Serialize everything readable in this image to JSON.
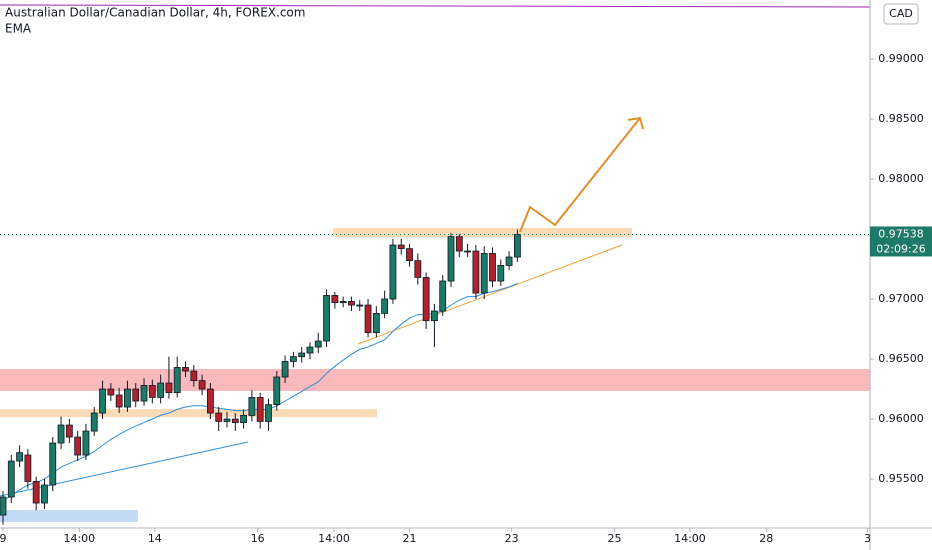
{
  "chart_data": {
    "type": "candlestick",
    "title": "Australian Dollar/Canadian Dollar, 4h, FOREX.com",
    "currency": "CAD",
    "candles": {
      "open": [
        0.952,
        0.9535,
        0.9565,
        0.957,
        0.9548,
        0.953,
        0.9545,
        0.958,
        0.9595,
        0.9585,
        0.957,
        0.959,
        0.9605,
        0.9625,
        0.962,
        0.961,
        0.9625,
        0.9615,
        0.9628,
        0.9618,
        0.963,
        0.9622,
        0.9643,
        0.964,
        0.9632,
        0.9625,
        0.9605,
        0.9598,
        0.96,
        0.9597,
        0.9603,
        0.9618,
        0.9598,
        0.9612,
        0.9635,
        0.9648,
        0.9652,
        0.9655,
        0.966,
        0.9665,
        0.9703,
        0.9697,
        0.9698,
        0.9695,
        0.9695,
        0.9672,
        0.9688,
        0.97,
        0.9745,
        0.9742,
        0.9732,
        0.9718,
        0.9682,
        0.969,
        0.9715,
        0.9752,
        0.974,
        0.974,
        0.9705,
        0.9738,
        0.9715,
        0.9728,
        0.9735
      ],
      "high": [
        0.954,
        0.957,
        0.9578,
        0.9575,
        0.9552,
        0.955,
        0.9585,
        0.9602,
        0.96,
        0.959,
        0.9596,
        0.961,
        0.9632,
        0.963,
        0.9626,
        0.9632,
        0.963,
        0.9634,
        0.9633,
        0.9637,
        0.9652,
        0.9652,
        0.9648,
        0.9645,
        0.9637,
        0.963,
        0.961,
        0.9606,
        0.9605,
        0.9608,
        0.9624,
        0.9622,
        0.9617,
        0.964,
        0.9653,
        0.9656,
        0.966,
        0.9664,
        0.9672,
        0.9708,
        0.9706,
        0.9702,
        0.9702,
        0.9699,
        0.97,
        0.9694,
        0.9707,
        0.975,
        0.975,
        0.9746,
        0.9738,
        0.9722,
        0.9696,
        0.972,
        0.9755,
        0.9754,
        0.9746,
        0.9745,
        0.9744,
        0.9743,
        0.9733,
        0.974,
        0.9758
      ],
      "low": [
        0.9512,
        0.953,
        0.956,
        0.9542,
        0.9524,
        0.9525,
        0.954,
        0.9575,
        0.958,
        0.9565,
        0.9566,
        0.9586,
        0.96,
        0.9615,
        0.9605,
        0.9606,
        0.961,
        0.9611,
        0.9613,
        0.9613,
        0.9617,
        0.9618,
        0.9635,
        0.9627,
        0.962,
        0.96,
        0.959,
        0.9593,
        0.959,
        0.9592,
        0.9598,
        0.9592,
        0.959,
        0.9607,
        0.963,
        0.9643,
        0.9647,
        0.965,
        0.9655,
        0.966,
        0.9692,
        0.9693,
        0.969,
        0.969,
        0.9668,
        0.9668,
        0.9684,
        0.9696,
        0.9737,
        0.9727,
        0.9712,
        0.9675,
        0.966,
        0.9686,
        0.971,
        0.9735,
        0.9735,
        0.97,
        0.97,
        0.971,
        0.9711,
        0.9724,
        0.9731
      ],
      "close": [
        0.9535,
        0.9565,
        0.9572,
        0.9548,
        0.953,
        0.9545,
        0.958,
        0.9595,
        0.9585,
        0.957,
        0.959,
        0.9605,
        0.9625,
        0.962,
        0.961,
        0.9625,
        0.9615,
        0.9628,
        0.9618,
        0.963,
        0.9622,
        0.9643,
        0.964,
        0.9632,
        0.9625,
        0.9605,
        0.9598,
        0.96,
        0.9597,
        0.9603,
        0.9618,
        0.9598,
        0.9612,
        0.9635,
        0.9648,
        0.9652,
        0.9655,
        0.966,
        0.9665,
        0.9703,
        0.9697,
        0.9698,
        0.9695,
        0.9695,
        0.9672,
        0.9688,
        0.97,
        0.9745,
        0.9742,
        0.9732,
        0.9718,
        0.9682,
        0.969,
        0.9715,
        0.9752,
        0.974,
        0.974,
        0.9705,
        0.9738,
        0.9715,
        0.9728,
        0.9735,
        0.97538
      ],
      "up_color": "#1d7a68",
      "down_color": "#b0222e",
      "last_label": "0.97538",
      "countdown": "02:09:26"
    },
    "ema": {
      "name": "EMA",
      "color": "#2e8fd8",
      "values": [
        0.9532,
        0.9536,
        0.9541,
        0.9545,
        0.9547,
        0.955,
        0.9555,
        0.956,
        0.9563,
        0.9566,
        0.9569,
        0.9573,
        0.9578,
        0.9583,
        0.9587,
        0.9591,
        0.9594,
        0.9597,
        0.96,
        0.9603,
        0.9605,
        0.9608,
        0.961,
        0.9611,
        0.9611,
        0.961,
        0.9609,
        0.9608,
        0.9607,
        0.9607,
        0.9608,
        0.9608,
        0.9608,
        0.9611,
        0.9615,
        0.9619,
        0.9623,
        0.9627,
        0.9631,
        0.9638,
        0.9644,
        0.9649,
        0.9654,
        0.9658,
        0.966,
        0.9663,
        0.9666,
        0.9673,
        0.9679,
        0.9684,
        0.9687,
        0.9687,
        0.9688,
        0.969,
        0.9695,
        0.9699,
        0.9702,
        0.9702,
        0.9705,
        0.9706,
        0.9708,
        0.971,
        0.9713
      ]
    },
    "xlim": [
      -0.36,
      104.5
    ],
    "xticks": [
      {
        "value": 0,
        "label": "9"
      },
      {
        "value": 9.2,
        "label": "14:00"
      },
      {
        "value": 18.3,
        "label": "14"
      },
      {
        "value": 30.7,
        "label": "16"
      },
      {
        "value": 39.9,
        "label": "14:00"
      },
      {
        "value": 49,
        "label": "21"
      },
      {
        "value": 61.3,
        "label": "23"
      },
      {
        "value": 73.7,
        "label": "25"
      },
      {
        "value": 82.8,
        "label": "14:00"
      },
      {
        "value": 92,
        "label": "28"
      },
      {
        "value": 104.2,
        "label": "3"
      }
    ],
    "ylim": [
      0.95092,
      0.99492
    ],
    "yticks": [
      {
        "value": 0.955,
        "label": "0.95500"
      },
      {
        "value": 0.96,
        "label": "0.96000"
      },
      {
        "value": 0.965,
        "label": "0.96500"
      },
      {
        "value": 0.97,
        "label": "0.97000"
      },
      {
        "value": 0.975,
        "label": "0.97500"
      },
      {
        "value": 0.98,
        "label": "0.98000"
      },
      {
        "value": 0.985,
        "label": "0.98500"
      },
      {
        "value": 0.99,
        "label": "0.99000"
      }
    ]
  }
}
